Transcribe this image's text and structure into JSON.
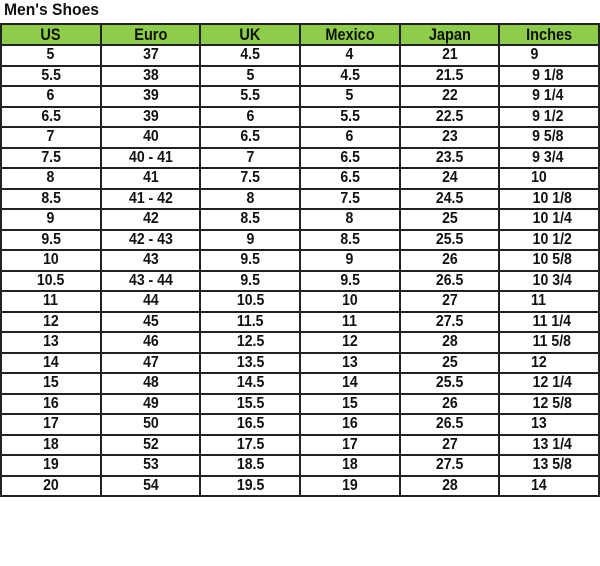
{
  "title": "Men's Shoes",
  "header_color": "#8dcd4a",
  "columns": [
    "US",
    "Euro",
    "UK",
    "Mexico",
    "Japan",
    "Inches"
  ],
  "rows": [
    [
      "5",
      "37",
      "4.5",
      "4",
      "21",
      "9"
    ],
    [
      "5.5",
      "38",
      "5",
      "4.5",
      "21.5",
      "9 1/8"
    ],
    [
      "6",
      "39",
      "5.5",
      "5",
      "22",
      "9 1/4"
    ],
    [
      "6.5",
      "39",
      "6",
      "5.5",
      "22.5",
      "9 1/2"
    ],
    [
      "7",
      "40",
      "6.5",
      "6",
      "23",
      "9 5/8"
    ],
    [
      "7.5",
      "40 - 41",
      "7",
      "6.5",
      "23.5",
      "9 3/4"
    ],
    [
      "8",
      "41",
      "7.5",
      "6.5",
      "24",
      "10"
    ],
    [
      "8.5",
      "41 - 42",
      "8",
      "7.5",
      "24.5",
      "10 1/8"
    ],
    [
      "9",
      "42",
      "8.5",
      "8",
      "25",
      "10 1/4"
    ],
    [
      "9.5",
      "42 - 43",
      "9",
      "8.5",
      "25.5",
      "10 1/2"
    ],
    [
      "10",
      "43",
      "9.5",
      "9",
      "26",
      "10 5/8"
    ],
    [
      "10.5",
      "43 - 44",
      "9.5",
      "9.5",
      "26.5",
      "10 3/4"
    ],
    [
      "11",
      "44",
      "10.5",
      "10",
      "27",
      "11"
    ],
    [
      "12",
      "45",
      "11.5",
      "11",
      "27.5",
      "11 1/4"
    ],
    [
      "13",
      "46",
      "12.5",
      "12",
      "28",
      "11 5/8"
    ],
    [
      "14",
      "47",
      "13.5",
      "13",
      "25",
      "12"
    ],
    [
      "15",
      "48",
      "14.5",
      "14",
      "25.5",
      "12 1/4"
    ],
    [
      "16",
      "49",
      "15.5",
      "15",
      "26",
      "12 5/8"
    ],
    [
      "17",
      "50",
      "16.5",
      "16",
      "26.5",
      "13"
    ],
    [
      "18",
      "52",
      "17.5",
      "17",
      "27",
      "13 1/4"
    ],
    [
      "19",
      "53",
      "18.5",
      "18",
      "27.5",
      "13 5/8"
    ],
    [
      "20",
      "54",
      "19.5",
      "19",
      "28",
      "14"
    ]
  ]
}
